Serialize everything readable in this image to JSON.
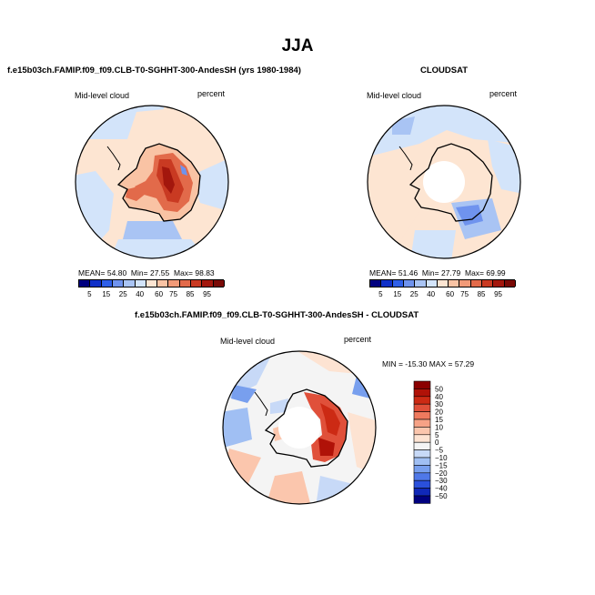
{
  "title": "JJA",
  "chart_data": [
    {
      "type": "heatmap",
      "projection": "south-polar-stereographic",
      "title": "f.e15b03ch.FAMIP.f09_f09.CLB-T0-SGHHT-300-AndesSH (yrs 1980-1984)",
      "left_label": "Mid-level cloud",
      "right_label": "percent",
      "stats": {
        "mean_label": "MEAN=",
        "mean": "54.80",
        "min_label": "Min=",
        "min": "27.55",
        "max_label": "Max=",
        "max": "98.83"
      },
      "colorbar_ticks": [
        "5",
        "15",
        "25",
        "40",
        "60",
        "75",
        "85",
        "95"
      ],
      "colorbar_colors": [
        "#00007f",
        "#1030c8",
        "#2f5fe8",
        "#6f93ee",
        "#a9c4f4",
        "#d3e4fa",
        "#fde5d2",
        "#f9c3a4",
        "#f19a78",
        "#e26a4a",
        "#c93a22",
        "#a3170d",
        "#7a0a06"
      ]
    },
    {
      "type": "heatmap",
      "projection": "south-polar-stereographic",
      "title": "CLOUDSAT",
      "left_label": "Mid-level cloud",
      "right_label": "percent",
      "stats": {
        "mean_label": "MEAN=",
        "mean": "51.46",
        "min_label": "Min=",
        "min": "27.79",
        "max_label": "Max=",
        "max": "69.99"
      },
      "colorbar_ticks": [
        "5",
        "15",
        "25",
        "40",
        "60",
        "75",
        "85",
        "95"
      ],
      "colorbar_colors": [
        "#00007f",
        "#1030c8",
        "#2f5fe8",
        "#6f93ee",
        "#a9c4f4",
        "#d3e4fa",
        "#fde5d2",
        "#f9c3a4",
        "#f19a78",
        "#e26a4a",
        "#c93a22",
        "#a3170d",
        "#7a0a06"
      ]
    },
    {
      "type": "heatmap",
      "projection": "south-polar-stereographic",
      "title": "f.e15b03ch.FAMIP.f09_f09.CLB-T0-SGHHT-300-AndesSH - CLOUDSAT",
      "left_label": "Mid-level cloud",
      "right_label": "percent",
      "stats_line": "MIN = -15.30 MAX =  57.29",
      "colorbar_ticks": [
        "50",
        "40",
        "30",
        "20",
        "15",
        "10",
        "5",
        "0",
        "−5",
        "−10",
        "−15",
        "−20",
        "−30",
        "−40",
        "−50"
      ],
      "colorbar_colors": [
        "#8b0000",
        "#b01208",
        "#cc2a14",
        "#e0503a",
        "#ef7a5e",
        "#f6a286",
        "#fbc6ad",
        "#fde3d2",
        "#f4f4f4",
        "#c7d9f7",
        "#a0bff3",
        "#789fee",
        "#4f78e8",
        "#2a50dc",
        "#1028b8",
        "#00007f"
      ]
    }
  ]
}
